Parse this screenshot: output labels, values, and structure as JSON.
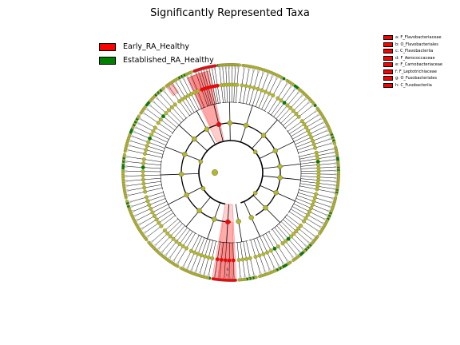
{
  "title": "Significantly Represented Taxa",
  "colors": {
    "early": "#ff0000",
    "established": "#008000",
    "neutral_node": "#b5b827",
    "branch": "#000000",
    "highlight": "#ff0000"
  },
  "groups": [
    {
      "name": "Early_RA_Healthy",
      "color": "#ff0000"
    },
    {
      "name": "Established_RA_Healthy",
      "color": "#008000"
    }
  ],
  "taxa_legend": [
    {
      "label": "a: F_Flavobacteriaceae",
      "color": "#ff0000"
    },
    {
      "label": "b: O_Flavobacteriales",
      "color": "#ff0000"
    },
    {
      "label": "c: C_Flavobacteriia",
      "color": "#ff0000"
    },
    {
      "label": "d: F_Aerococcaceae",
      "color": "#ff0000"
    },
    {
      "label": "e: F_Carnobacteriaceae",
      "color": "#ff0000"
    },
    {
      "label": "f: F_Leptotrichiaceae",
      "color": "#ff0000"
    },
    {
      "label": "g: O_Fusobacteriales",
      "color": "#ff0000"
    },
    {
      "label": "h: C_Fusobacteriia",
      "color": "#ff0000"
    }
  ],
  "sector_labels": [
    "f",
    "g",
    "h"
  ]
}
